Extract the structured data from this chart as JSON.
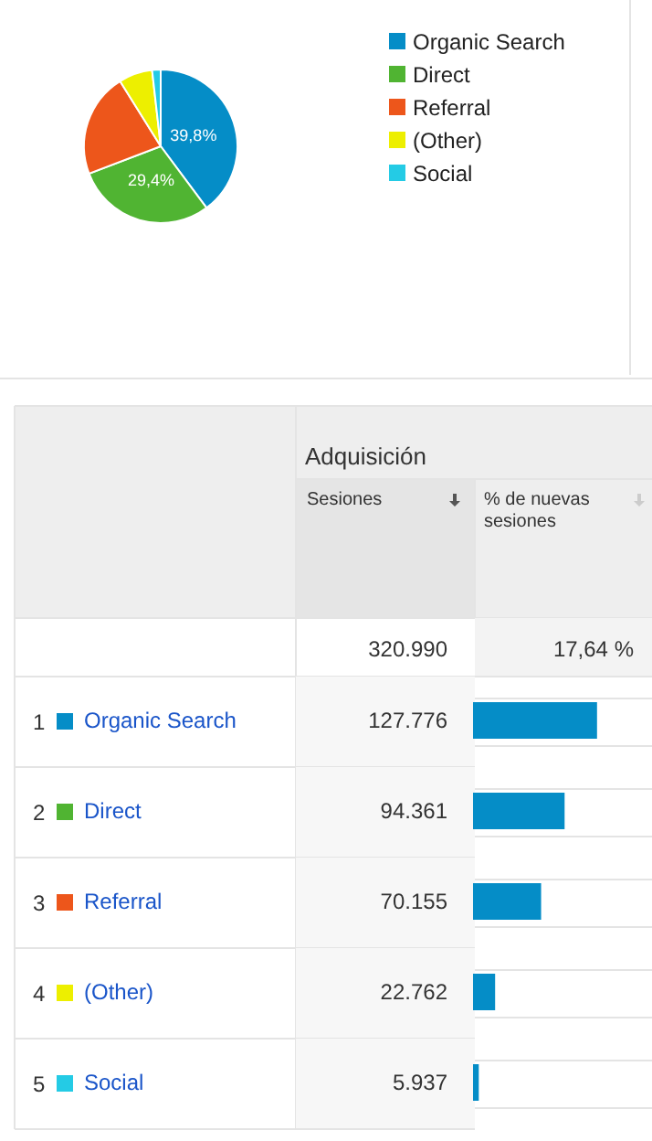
{
  "chart_data": [
    {
      "type": "pie",
      "categories": [
        "Organic Search",
        "Direct",
        "Referral",
        "(Other)",
        "Social"
      ],
      "values": [
        39.8,
        29.4,
        21.9,
        7.1,
        1.8
      ],
      "colors": [
        "#058dc7",
        "#50b432",
        "#ed561b",
        "#edef00",
        "#24cbe5"
      ],
      "value_labels": [
        "39,8%",
        "29,4%",
        null,
        null,
        null
      ],
      "legend": "right"
    },
    {
      "type": "bar",
      "orientation": "horizontal",
      "title": "Adquisición",
      "categories": [
        "Organic Search",
        "Direct",
        "Referral",
        "(Other)",
        "Social"
      ],
      "values": [
        127776,
        94361,
        70155,
        22762,
        5937
      ],
      "value_labels": [
        "127.776",
        "94.361",
        "70.155",
        "22.762",
        "5.937"
      ],
      "color": "#058dc7",
      "annotations": [
        "Sesiones",
        "% de nuevas sesiones",
        "320.990",
        "17,64 %",
        "1",
        "2",
        "3",
        "4",
        "5"
      ]
    }
  ]
}
